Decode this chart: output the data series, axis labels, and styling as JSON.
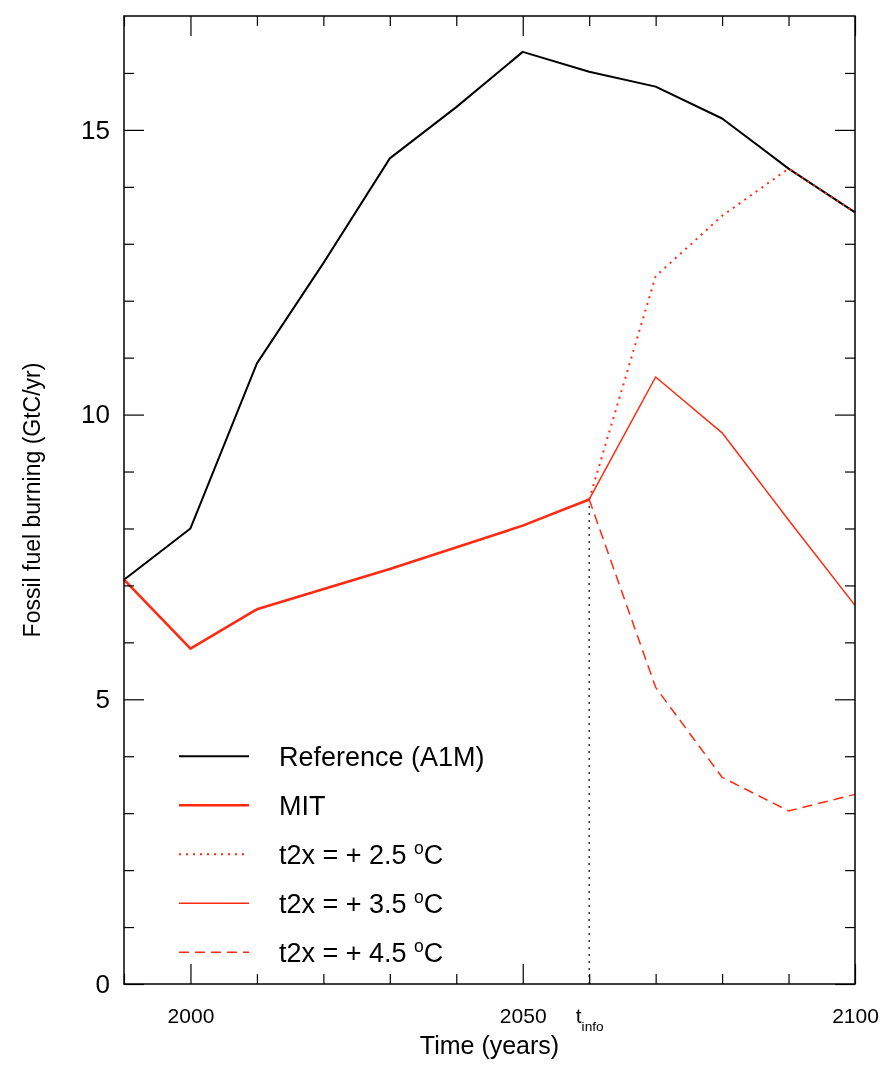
{
  "chart_data": {
    "type": "line",
    "xlabel": "Time (years)",
    "ylabel": "Fossil fuel burning (GtC/yr)",
    "xlim": [
      1990,
      2100
    ],
    "ylim": [
      0,
      17
    ],
    "xticks": [
      {
        "value": 1990,
        "label": null
      },
      2000,
      {
        "value": 2010,
        "label": null
      },
      {
        "value": 2020,
        "label": null
      },
      {
        "value": 2030,
        "label": null
      },
      {
        "value": 2040,
        "label": null
      },
      2050,
      {
        "value": 2060,
        "label": "t$_{info}$"
      },
      {
        "value": 2070,
        "label": null
      },
      {
        "value": 2080,
        "label": null
      },
      {
        "value": 2090,
        "label": null
      },
      2100
    ],
    "yticks": [
      0,
      {
        "value": 1,
        "label": null
      },
      {
        "value": 2,
        "label": null
      },
      {
        "value": 3,
        "label": null
      },
      {
        "value": 4,
        "label": null
      },
      5,
      {
        "value": 6,
        "label": null
      },
      {
        "value": 7,
        "label": null
      },
      {
        "value": 8,
        "label": null
      },
      {
        "value": 9,
        "label": null
      },
      10,
      {
        "value": 11,
        "label": null
      },
      {
        "value": 12,
        "label": null
      },
      {
        "value": 13,
        "label": null
      },
      {
        "value": 14,
        "label": null
      },
      15,
      {
        "value": 16,
        "label": null
      }
    ],
    "grid": false,
    "legend": "bottom left",
    "series": [
      {
        "name": "Reference (A1M)",
        "color": "#000000",
        "line_style": "solid",
        "x": [
          1990,
          2000,
          2010,
          2020,
          2030,
          2040,
          2050,
          2060,
          2070,
          2080,
          2090,
          2100
        ],
        "values": [
          7.1,
          8.0,
          10.9,
          12.66,
          14.5,
          15.4,
          16.37,
          16.02,
          15.76,
          15.2,
          14.32,
          13.55
        ]
      },
      {
        "name": "MIT",
        "color": "#ff2a10",
        "line_style": "solid",
        "x": [
          1990,
          2000,
          2010,
          2030,
          2050,
          2060
        ],
        "values": [
          7.1,
          5.89,
          6.58,
          7.29,
          8.05,
          8.51
        ]
      },
      {
        "name": "t2x = + 2.5 $^{o}$C",
        "color": "#ff2a10",
        "line_style": "dotted",
        "x": [
          2060,
          2070,
          2080,
          2090,
          2100
        ],
        "values": [
          8.51,
          12.43,
          13.49,
          14.32,
          13.55
        ]
      },
      {
        "name": "t2x = + 3.5 $^{o}$C",
        "color": "#ff2a10",
        "line_style": "solid",
        "x": [
          2060,
          2070,
          2080,
          2090,
          2100
        ],
        "values": [
          8.51,
          10.66,
          9.68,
          8.15,
          6.65
        ]
      },
      {
        "name": "t2x = + 4.5 $^{o}$C",
        "color": "#ff2a10",
        "line_style": "dashed",
        "x": [
          2060,
          2070,
          2080,
          2090,
          2100
        ],
        "values": [
          8.51,
          5.21,
          3.63,
          3.04,
          3.33
        ]
      }
    ],
    "ref_lines": [
      {
        "axis": "x",
        "value": 2060,
        "color": "#000000",
        "line_style": "dotted"
      }
    ]
  }
}
